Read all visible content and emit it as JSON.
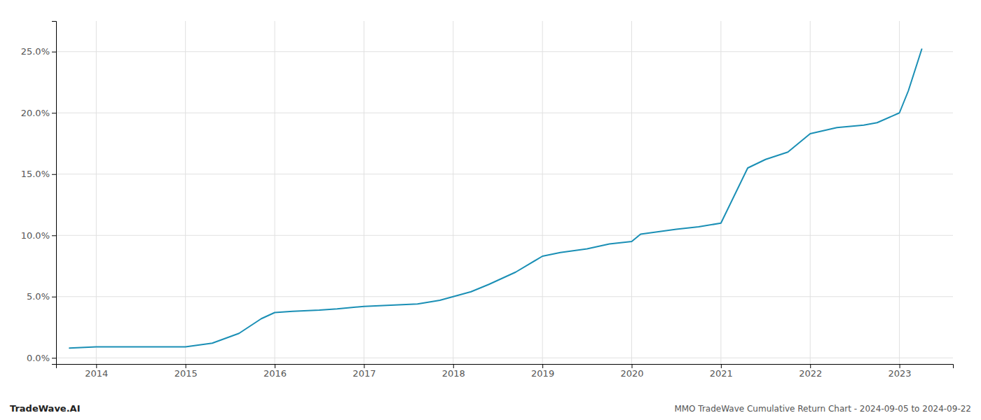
{
  "chart_data": {
    "type": "line",
    "title": "MMO TradeWave Cumulative Return Chart - 2024-09-05 to 2024-09-22",
    "annotations": [
      "TradeWave.AI"
    ],
    "x": [
      2013.7,
      2014.0,
      2014.2,
      2014.5,
      2014.75,
      2015.0,
      2015.1,
      2015.3,
      2015.6,
      2015.85,
      2016.0,
      2016.2,
      2016.5,
      2016.7,
      2017.0,
      2017.3,
      2017.6,
      2017.85,
      2018.0,
      2018.2,
      2018.4,
      2018.7,
      2019.0,
      2019.2,
      2019.5,
      2019.75,
      2020.0,
      2020.1,
      2020.5,
      2020.75,
      2021.0,
      2021.3,
      2021.5,
      2021.75,
      2022.0,
      2022.3,
      2022.6,
      2022.75,
      2023.0,
      2023.1,
      2023.25
    ],
    "values": [
      0.008,
      0.009,
      0.009,
      0.009,
      0.009,
      0.009,
      0.01,
      0.012,
      0.02,
      0.032,
      0.037,
      0.038,
      0.039,
      0.04,
      0.042,
      0.043,
      0.044,
      0.047,
      0.05,
      0.054,
      0.06,
      0.07,
      0.083,
      0.086,
      0.089,
      0.093,
      0.095,
      0.101,
      0.105,
      0.107,
      0.11,
      0.155,
      0.162,
      0.168,
      0.183,
      0.188,
      0.19,
      0.192,
      0.2,
      0.218,
      0.252
    ],
    "color": "#1a8fb5",
    "xlim": [
      2013.55,
      2023.6
    ],
    "xticks": [
      2014,
      2015,
      2016,
      2017,
      2018,
      2019,
      2020,
      2021,
      2022,
      2023
    ],
    "ylim": [
      -0.005,
      0.275
    ],
    "yticks": [
      {
        "value": 0.0,
        "label": "0.0%"
      },
      {
        "value": 0.05,
        "label": "5.0%"
      },
      {
        "value": 0.1,
        "label": "10.0%"
      },
      {
        "value": 0.15,
        "label": "15.0%"
      },
      {
        "value": 0.2,
        "label": "20.0%"
      },
      {
        "value": 0.25,
        "label": "25.0%"
      }
    ],
    "grid": true
  }
}
